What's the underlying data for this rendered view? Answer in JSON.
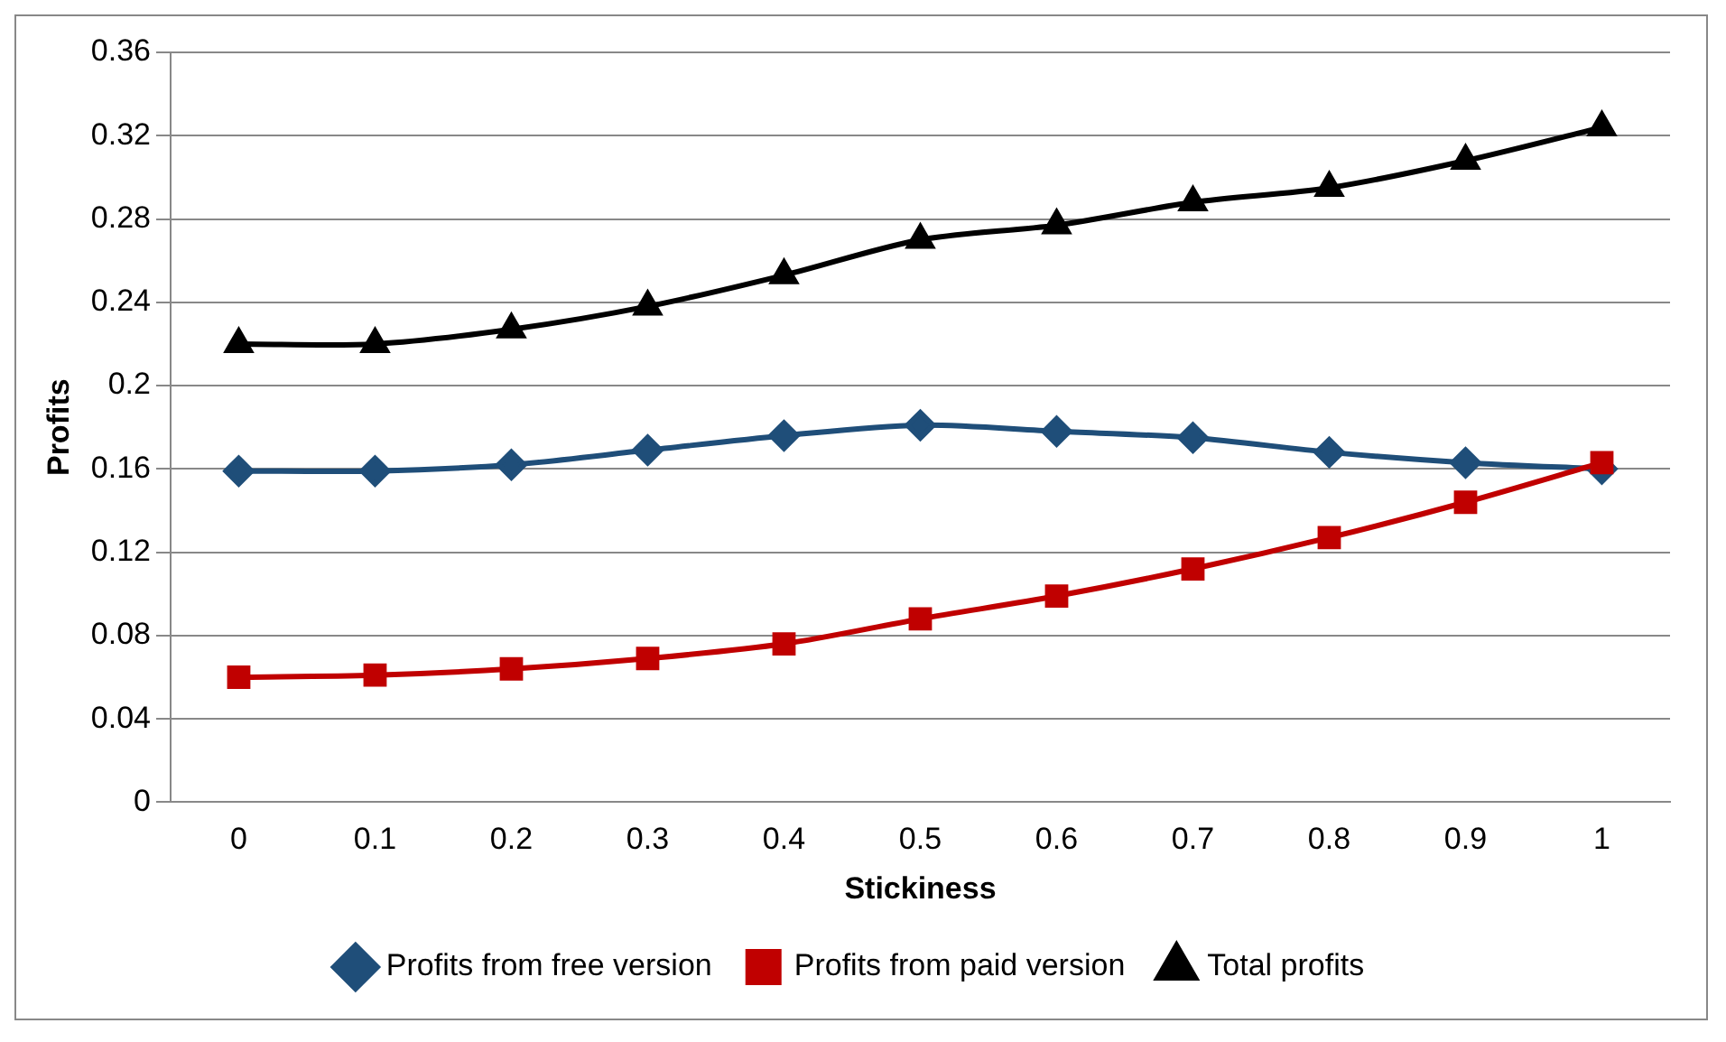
{
  "chart_data": {
    "type": "line",
    "xlabel": "Stickiness",
    "ylabel": "Profits",
    "categories": [
      "0",
      "0.1",
      "0.2",
      "0.3",
      "0.4",
      "0.5",
      "0.6",
      "0.7",
      "0.8",
      "0.9",
      "1"
    ],
    "series": [
      {
        "name": "Profits from free version",
        "color": "#1f4e79",
        "marker": "diamond",
        "values": [
          0.159,
          0.159,
          0.162,
          0.169,
          0.176,
          0.181,
          0.178,
          0.175,
          0.168,
          0.163,
          0.16
        ]
      },
      {
        "name": "Profits from paid version",
        "color": "#c00000",
        "marker": "square",
        "values": [
          0.06,
          0.061,
          0.064,
          0.069,
          0.076,
          0.088,
          0.099,
          0.112,
          0.127,
          0.144,
          0.163
        ]
      },
      {
        "name": "Total profits",
        "color": "#000000",
        "marker": "triangle",
        "values": [
          0.22,
          0.22,
          0.227,
          0.238,
          0.253,
          0.27,
          0.277,
          0.288,
          0.295,
          0.308,
          0.324
        ]
      }
    ],
    "ylim": [
      0,
      0.36
    ],
    "yticks": [
      0,
      0.04,
      0.08,
      0.12,
      0.16,
      0.2,
      0.24,
      0.28,
      0.32,
      0.36
    ],
    "grid": "y",
    "legend": "bottom"
  }
}
